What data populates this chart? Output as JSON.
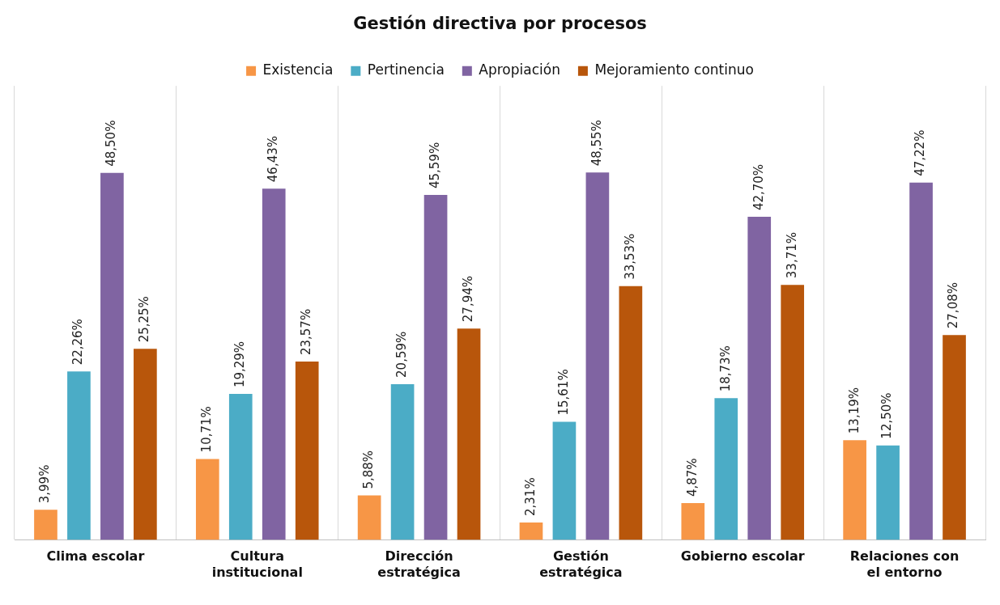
{
  "chart_data": {
    "type": "bar",
    "title": "Gestión directiva por procesos",
    "categories": [
      "Clima escolar",
      "Cultura institucional",
      "Dirección estratégica",
      "Gestión estratégica",
      "Gobierno escolar",
      "Relaciones con el entorno"
    ],
    "series": [
      {
        "name": "Existencia",
        "color": "#f79646",
        "values": [
          3.99,
          10.71,
          5.88,
          2.31,
          4.87,
          13.19
        ],
        "value_labels": [
          "3,99%",
          "10,71%",
          "5,88%",
          "2,31%",
          "4,87%",
          "13,19%"
        ]
      },
      {
        "name": "Pertinencia",
        "color": "#4bacc6",
        "values": [
          22.26,
          19.29,
          20.59,
          15.61,
          18.73,
          12.5
        ],
        "value_labels": [
          "22,26%",
          "19,29%",
          "20,59%",
          "15,61%",
          "18,73%",
          "12,50%"
        ]
      },
      {
        "name": "Apropiación",
        "color": "#8064a2",
        "values": [
          48.5,
          46.43,
          45.59,
          48.55,
          42.7,
          47.22
        ],
        "value_labels": [
          "48,50%",
          "46,43%",
          "45,59%",
          "48,55%",
          "42,70%",
          "47,22%"
        ]
      },
      {
        "name": "Mejoramiento continuo",
        "color": "#b8560b",
        "values": [
          25.25,
          23.57,
          27.94,
          33.53,
          33.71,
          27.08
        ],
        "value_labels": [
          "25,25%",
          "23,57%",
          "27,94%",
          "33,53%",
          "33,71%",
          "27,08%"
        ]
      }
    ],
    "grid": "x",
    "legend": "top"
  }
}
